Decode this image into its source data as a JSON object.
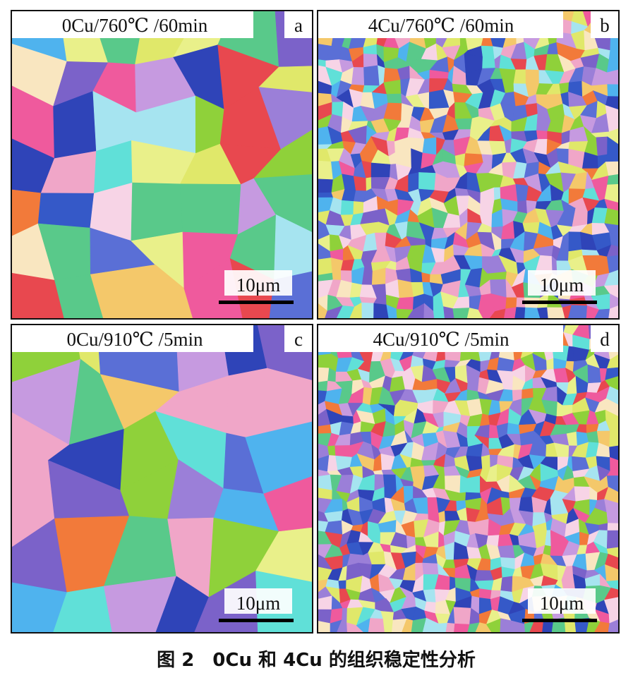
{
  "panels": [
    {
      "label": "0Cu/760℃ /60min",
      "letter": "a",
      "scale_bar": "10μm"
    },
    {
      "label": "4Cu/760℃ /60min",
      "letter": "b",
      "scale_bar": "10μm"
    },
    {
      "label": "0Cu/910℃ /5min",
      "letter": "c",
      "scale_bar": "10μm"
    },
    {
      "label": "4Cu/910℃ /5min",
      "letter": "d",
      "scale_bar": "10μm"
    }
  ],
  "caption": "图 2　0Cu 和 4Cu 的组织稳定性分析"
}
